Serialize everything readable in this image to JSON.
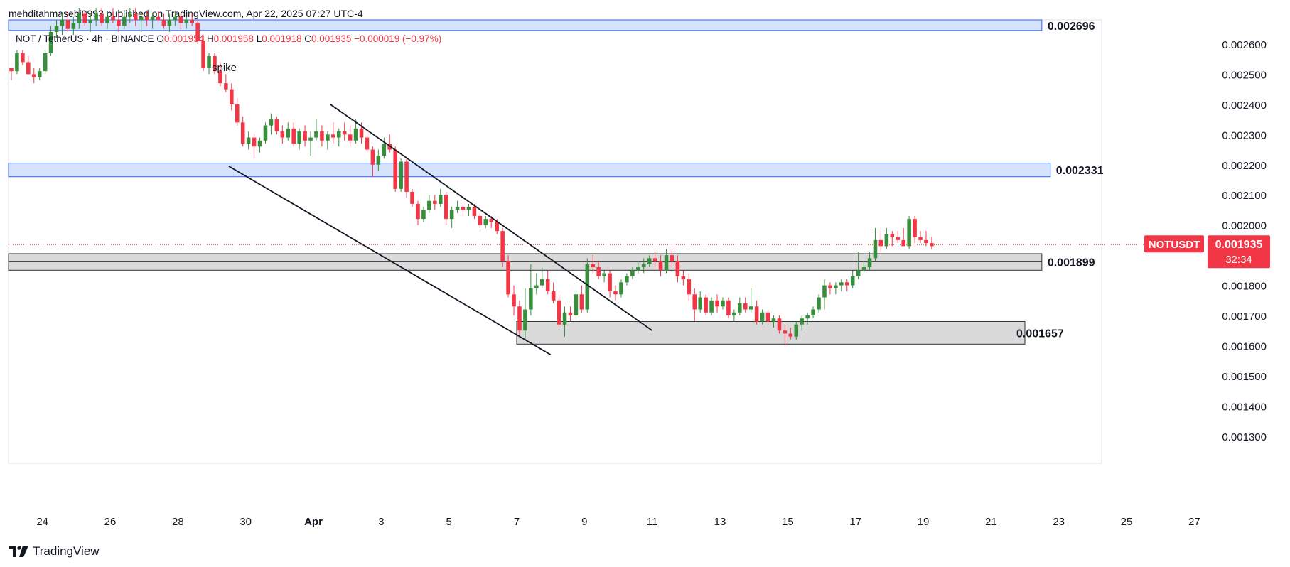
{
  "header": {
    "published_by": "mehditahmasebi0993 published on TradingView.com, Apr 22, 2025 07:27 UTC-4"
  },
  "footer": {
    "brand": "TradingView",
    "logo_icon": "tradingview-logo-icon"
  },
  "colors": {
    "up": "#26a69a",
    "up_body": "#388e3c",
    "down": "#f23645",
    "blue_zone_fill": "#c8daff",
    "blue_zone_stroke": "#2962ff",
    "gray_zone_fill": "#d4d4d4",
    "gray_zone_stroke": "#333333",
    "price_badge": "#f23645"
  },
  "chart_data": {
    "type": "candlestick",
    "symbol_line": {
      "symbol": "NOT / TetherUS · 4h · BINANCE",
      "o_label": "O",
      "o": "0.001954",
      "h_label": "H",
      "h": "0.001958",
      "l_label": "L",
      "l": "0.001918",
      "c_label": "C",
      "c": "0.001935",
      "change": "−0.000019 (−0.97%)"
    },
    "ylim": [
      0.00121,
      0.00268
    ],
    "y_ticks": [
      "0.001300",
      "0.001400",
      "0.001500",
      "0.001600",
      "0.001700",
      "0.001800",
      "0.001900",
      "0.002000",
      "0.002100",
      "0.002200",
      "0.002300",
      "0.002400",
      "0.002500",
      "0.002600"
    ],
    "x_domain": [
      "2025-03-23T00:00",
      "2025-03-29T00:00",
      "2025-04-28T12:00"
    ],
    "x_ticks": [
      {
        "label": "24",
        "date": "2025-03-24"
      },
      {
        "label": "26",
        "date": "2025-03-26"
      },
      {
        "label": "28",
        "date": "2025-03-28"
      },
      {
        "label": "30",
        "date": "2025-03-30"
      },
      {
        "label": "Apr",
        "date": "2025-04-01"
      },
      {
        "label": "3",
        "date": "2025-04-03"
      },
      {
        "label": "5",
        "date": "2025-04-05"
      },
      {
        "label": "7",
        "date": "2025-04-07"
      },
      {
        "label": "9",
        "date": "2025-04-09"
      },
      {
        "label": "11",
        "date": "2025-04-11"
      },
      {
        "label": "13",
        "date": "2025-04-13"
      },
      {
        "label": "15",
        "date": "2025-04-15"
      },
      {
        "label": "17",
        "date": "2025-04-17"
      },
      {
        "label": "19",
        "date": "2025-04-19"
      },
      {
        "label": "21",
        "date": "2025-04-21"
      },
      {
        "label": "23",
        "date": "2025-04-23"
      },
      {
        "label": "25",
        "date": "2025-04-25"
      },
      {
        "label": "27",
        "date": "2025-04-27"
      }
    ],
    "zones": [
      {
        "label": "0.002696",
        "color": "blue",
        "from": "2025-03-23",
        "to": "2025-04-22T12:00",
        "top": 0.0027,
        "bottom": 0.002645
      },
      {
        "label": "0.002331",
        "color": "blue",
        "from": "2025-03-23",
        "to": "2025-04-22T18:00",
        "top": 0.002205,
        "bottom": 0.00216
      },
      {
        "label": "0.001899",
        "color": "gray",
        "from": "2025-03-23",
        "to": "2025-04-22T12:00",
        "top": 0.001905,
        "bottom": 0.00185
      },
      {
        "label": "0.001657",
        "color": "gray",
        "from": "2025-04-07",
        "to": "2025-04-22T00:00",
        "top": 0.00168,
        "bottom": 0.001605
      }
    ],
    "trend_lines": [
      {
        "from": {
          "t": "2025-03-29T12:00",
          "p": 0.002195
        },
        "to": {
          "t": "2025-04-08T00:00",
          "p": 0.00157
        }
      },
      {
        "from": {
          "t": "2025-04-01T12:00",
          "p": 0.0024
        },
        "to": {
          "t": "2025-04-11T00:00",
          "p": 0.00165
        }
      }
    ],
    "annotations": [
      {
        "text": "spike",
        "t": "2025-03-29T00:00",
        "p": 0.00251
      }
    ],
    "last_price": {
      "symbol": "NOTUSDT",
      "price": "0.001935",
      "countdown": "32:34",
      "value": 0.001935
    },
    "candles_start": "2025-03-23T00:00",
    "candle_interval_hours": 4,
    "ohlc": [
      [
        0.00252,
        0.00252,
        0.00248,
        0.00251
      ],
      [
        0.00251,
        0.00258,
        0.0025,
        0.00257
      ],
      [
        0.00257,
        0.00258,
        0.00253,
        0.00254
      ],
      [
        0.00254,
        0.00256,
        0.0025,
        0.0025
      ],
      [
        0.0025,
        0.00252,
        0.00247,
        0.00249
      ],
      [
        0.00249,
        0.00252,
        0.00248,
        0.00251
      ],
      [
        0.00251,
        0.00258,
        0.0025,
        0.00257
      ],
      [
        0.00257,
        0.00266,
        0.00256,
        0.00264
      ],
      [
        0.00264,
        0.00268,
        0.00262,
        0.00266
      ],
      [
        0.00266,
        0.0027,
        0.00263,
        0.00268
      ],
      [
        0.00268,
        0.00271,
        0.00264,
        0.00265
      ],
      [
        0.00265,
        0.00269,
        0.00263,
        0.00267
      ],
      [
        0.00267,
        0.00272,
        0.00265,
        0.0027
      ],
      [
        0.0027,
        0.00271,
        0.00266,
        0.00267
      ],
      [
        0.00267,
        0.0027,
        0.00264,
        0.00268
      ],
      [
        0.00268,
        0.00272,
        0.00266,
        0.0027
      ],
      [
        0.0027,
        0.00272,
        0.00266,
        0.00267
      ],
      [
        0.00267,
        0.00271,
        0.00265,
        0.00269
      ],
      [
        0.00269,
        0.00272,
        0.00267,
        0.00268
      ],
      [
        0.00268,
        0.0027,
        0.00264,
        0.00266
      ],
      [
        0.00266,
        0.0027,
        0.00265,
        0.00269
      ],
      [
        0.00269,
        0.00272,
        0.00267,
        0.0027
      ],
      [
        0.0027,
        0.00272,
        0.00266,
        0.00268
      ],
      [
        0.00268,
        0.0027,
        0.00264,
        0.00269
      ],
      [
        0.00269,
        0.00271,
        0.00266,
        0.00268
      ],
      [
        0.00268,
        0.0027,
        0.00265,
        0.00269
      ],
      [
        0.00269,
        0.00271,
        0.00267,
        0.00268
      ],
      [
        0.00268,
        0.0027,
        0.00265,
        0.00266
      ],
      [
        0.00266,
        0.0027,
        0.00264,
        0.00268
      ],
      [
        0.00268,
        0.00271,
        0.00266,
        0.00269
      ],
      [
        0.00269,
        0.0027,
        0.00265,
        0.00267
      ],
      [
        0.00267,
        0.00269,
        0.00265,
        0.00268
      ],
      [
        0.00268,
        0.0027,
        0.00266,
        0.00267
      ],
      [
        0.00267,
        0.00268,
        0.0026,
        0.00261
      ],
      [
        0.00261,
        0.00263,
        0.00251,
        0.00252
      ],
      [
        0.00252,
        0.00257,
        0.0025,
        0.00256
      ],
      [
        0.00256,
        0.00257,
        0.0025,
        0.00251
      ],
      [
        0.00251,
        0.00254,
        0.00246,
        0.00247
      ],
      [
        0.00247,
        0.0025,
        0.00244,
        0.00245
      ],
      [
        0.00245,
        0.00247,
        0.00238,
        0.0024
      ],
      [
        0.0024,
        0.00242,
        0.00233,
        0.00234
      ],
      [
        0.00234,
        0.00236,
        0.00226,
        0.00227
      ],
      [
        0.00227,
        0.00231,
        0.00225,
        0.00229
      ],
      [
        0.00229,
        0.0023,
        0.00222,
        0.00226
      ],
      [
        0.00226,
        0.00229,
        0.00224,
        0.00228
      ],
      [
        0.00228,
        0.00234,
        0.00227,
        0.00233
      ],
      [
        0.00233,
        0.00237,
        0.0023,
        0.00235
      ],
      [
        0.00235,
        0.00236,
        0.0023,
        0.00231
      ],
      [
        0.00231,
        0.00233,
        0.00227,
        0.00229
      ],
      [
        0.00229,
        0.00234,
        0.00228,
        0.00232
      ],
      [
        0.00232,
        0.00234,
        0.00226,
        0.00227
      ],
      [
        0.00227,
        0.00232,
        0.00225,
        0.00231
      ],
      [
        0.00231,
        0.00233,
        0.00226,
        0.00228
      ],
      [
        0.00228,
        0.00231,
        0.00223,
        0.00229
      ],
      [
        0.00229,
        0.00235,
        0.00228,
        0.00231
      ],
      [
        0.00231,
        0.00233,
        0.00226,
        0.00228
      ],
      [
        0.00228,
        0.00231,
        0.00225,
        0.0023
      ],
      [
        0.0023,
        0.00234,
        0.00227,
        0.00229
      ],
      [
        0.00229,
        0.00232,
        0.00226,
        0.00231
      ],
      [
        0.00231,
        0.00234,
        0.00228,
        0.0023
      ],
      [
        0.0023,
        0.00233,
        0.00226,
        0.00228
      ],
      [
        0.00228,
        0.00235,
        0.00227,
        0.00232
      ],
      [
        0.00232,
        0.00234,
        0.00227,
        0.00229
      ],
      [
        0.00229,
        0.00231,
        0.00224,
        0.00225
      ],
      [
        0.00225,
        0.00226,
        0.00216,
        0.0022
      ],
      [
        0.0022,
        0.00225,
        0.00218,
        0.00223
      ],
      [
        0.00223,
        0.00229,
        0.00222,
        0.00227
      ],
      [
        0.00227,
        0.0023,
        0.00224,
        0.00225
      ],
      [
        0.00225,
        0.00226,
        0.00211,
        0.00212
      ],
      [
        0.00212,
        0.00222,
        0.00211,
        0.00221
      ],
      [
        0.00221,
        0.00222,
        0.00209,
        0.00211
      ],
      [
        0.00211,
        0.00212,
        0.00206,
        0.00207
      ],
      [
        0.00207,
        0.00208,
        0.002,
        0.00202
      ],
      [
        0.00202,
        0.00206,
        0.00201,
        0.00205
      ],
      [
        0.00205,
        0.0021,
        0.00204,
        0.00208
      ],
      [
        0.00208,
        0.0021,
        0.00205,
        0.00207
      ],
      [
        0.00207,
        0.00212,
        0.00206,
        0.0021
      ],
      [
        0.0021,
        0.00211,
        0.002,
        0.00202
      ],
      [
        0.00202,
        0.00206,
        0.00199,
        0.00205
      ],
      [
        0.00205,
        0.00208,
        0.00204,
        0.00206
      ],
      [
        0.00206,
        0.00207,
        0.00203,
        0.00205
      ],
      [
        0.00205,
        0.00207,
        0.00203,
        0.00206
      ],
      [
        0.00206,
        0.00207,
        0.00202,
        0.00203
      ],
      [
        0.00203,
        0.00204,
        0.00199,
        0.002
      ],
      [
        0.002,
        0.00203,
        0.00199,
        0.00202
      ],
      [
        0.00202,
        0.00203,
        0.00199,
        0.00201
      ],
      [
        0.00201,
        0.00202,
        0.00197,
        0.00198
      ],
      [
        0.00198,
        0.00199,
        0.00186,
        0.00188
      ],
      [
        0.00188,
        0.0019,
        0.00176,
        0.00177
      ],
      [
        0.00177,
        0.0018,
        0.0017,
        0.00173
      ],
      [
        0.00173,
        0.00175,
        0.00163,
        0.00165
      ],
      [
        0.00165,
        0.00179,
        0.00162,
        0.00172
      ],
      [
        0.00172,
        0.00187,
        0.0017,
        0.00179
      ],
      [
        0.00179,
        0.00184,
        0.00177,
        0.0018
      ],
      [
        0.0018,
        0.00186,
        0.00179,
        0.00182
      ],
      [
        0.00182,
        0.00185,
        0.00177,
        0.00178
      ],
      [
        0.00178,
        0.00181,
        0.00174,
        0.00175
      ],
      [
        0.00175,
        0.00177,
        0.00166,
        0.00167
      ],
      [
        0.00167,
        0.00173,
        0.00163,
        0.00171
      ],
      [
        0.00171,
        0.00173,
        0.00168,
        0.0017
      ],
      [
        0.0017,
        0.00178,
        0.00169,
        0.00177
      ],
      [
        0.00177,
        0.0018,
        0.00171,
        0.00172
      ],
      [
        0.00172,
        0.00189,
        0.00171,
        0.00187
      ],
      [
        0.00187,
        0.0019,
        0.00184,
        0.00186
      ],
      [
        0.00186,
        0.00188,
        0.00182,
        0.00183
      ],
      [
        0.00183,
        0.00185,
        0.00181,
        0.00184
      ],
      [
        0.00184,
        0.00185,
        0.00176,
        0.00178
      ],
      [
        0.00178,
        0.0018,
        0.00175,
        0.00177
      ],
      [
        0.00177,
        0.00182,
        0.00176,
        0.00181
      ],
      [
        0.00181,
        0.00184,
        0.0018,
        0.00183
      ],
      [
        0.00183,
        0.00186,
        0.00182,
        0.00185
      ],
      [
        0.00185,
        0.00188,
        0.00184,
        0.00186
      ],
      [
        0.00186,
        0.00189,
        0.00184,
        0.00187
      ],
      [
        0.00187,
        0.0019,
        0.00186,
        0.00189
      ],
      [
        0.00189,
        0.00191,
        0.00186,
        0.00188
      ],
      [
        0.00188,
        0.0019,
        0.00183,
        0.00185
      ],
      [
        0.00185,
        0.00192,
        0.00184,
        0.0019
      ],
      [
        0.0019,
        0.00192,
        0.00186,
        0.00188
      ],
      [
        0.00188,
        0.0019,
        0.00181,
        0.00183
      ],
      [
        0.00183,
        0.00185,
        0.0018,
        0.00182
      ],
      [
        0.00182,
        0.00184,
        0.00175,
        0.00177
      ],
      [
        0.00177,
        0.00179,
        0.00168,
        0.00172
      ],
      [
        0.00172,
        0.00178,
        0.00171,
        0.00176
      ],
      [
        0.00176,
        0.00177,
        0.0017,
        0.00171
      ],
      [
        0.00171,
        0.00176,
        0.0017,
        0.00175
      ],
      [
        0.00175,
        0.00177,
        0.00171,
        0.00173
      ],
      [
        0.00173,
        0.00176,
        0.00172,
        0.00175
      ],
      [
        0.00175,
        0.00176,
        0.00169,
        0.0017
      ],
      [
        0.0017,
        0.00172,
        0.00168,
        0.00171
      ],
      [
        0.00171,
        0.00176,
        0.0017,
        0.00174
      ],
      [
        0.00174,
        0.00176,
        0.00171,
        0.00172
      ],
      [
        0.00172,
        0.00179,
        0.00171,
        0.00173
      ],
      [
        0.00173,
        0.00175,
        0.00167,
        0.00168
      ],
      [
        0.00168,
        0.00172,
        0.00167,
        0.00171
      ],
      [
        0.00171,
        0.00172,
        0.00167,
        0.00168
      ],
      [
        0.00168,
        0.0017,
        0.00166,
        0.00169
      ],
      [
        0.00169,
        0.0017,
        0.00164,
        0.00165
      ],
      [
        0.00165,
        0.00167,
        0.0016,
        0.00164
      ],
      [
        0.00164,
        0.00166,
        0.00162,
        0.00163
      ],
      [
        0.00163,
        0.00168,
        0.00162,
        0.00167
      ],
      [
        0.00167,
        0.0017,
        0.00165,
        0.00169
      ],
      [
        0.00169,
        0.00171,
        0.00167,
        0.0017
      ],
      [
        0.0017,
        0.00173,
        0.00169,
        0.00172
      ],
      [
        0.00172,
        0.00177,
        0.00171,
        0.00176
      ],
      [
        0.00176,
        0.00182,
        0.00172,
        0.0018
      ],
      [
        0.0018,
        0.00181,
        0.00177,
        0.00179
      ],
      [
        0.00179,
        0.00181,
        0.00177,
        0.0018
      ],
      [
        0.0018,
        0.00182,
        0.00178,
        0.00181
      ],
      [
        0.00181,
        0.00182,
        0.00178,
        0.0018
      ],
      [
        0.0018,
        0.00185,
        0.00179,
        0.00183
      ],
      [
        0.00183,
        0.00191,
        0.00182,
        0.00185
      ],
      [
        0.00185,
        0.00188,
        0.00184,
        0.00186
      ],
      [
        0.00186,
        0.00191,
        0.00185,
        0.00189
      ],
      [
        0.00189,
        0.00199,
        0.00188,
        0.00195
      ],
      [
        0.00195,
        0.00198,
        0.00191,
        0.00193
      ],
      [
        0.00193,
        0.00199,
        0.00192,
        0.00197
      ],
      [
        0.00197,
        0.00198,
        0.00193,
        0.00196
      ],
      [
        0.00196,
        0.00198,
        0.00194,
        0.00195
      ],
      [
        0.00195,
        0.00199,
        0.00194,
        0.00193
      ],
      [
        0.00193,
        0.00203,
        0.00192,
        0.00202
      ],
      [
        0.00202,
        0.00203,
        0.00194,
        0.00196
      ],
      [
        0.00196,
        0.00198,
        0.00194,
        0.00195
      ],
      [
        0.00195,
        0.00198,
        0.00193,
        0.00194
      ],
      [
        0.00194,
        0.00196,
        0.00192,
        0.00193
      ]
    ]
  }
}
